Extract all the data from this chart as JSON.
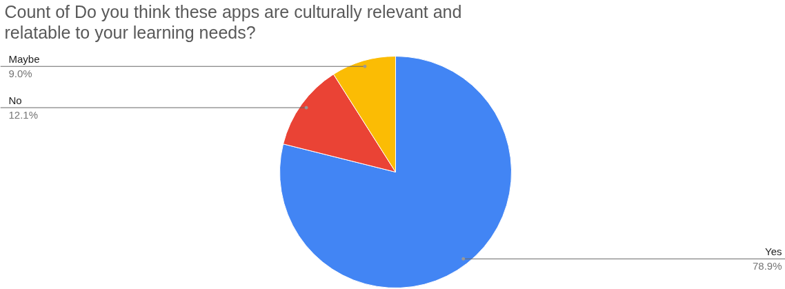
{
  "chart_data": {
    "type": "pie",
    "title": "Count of Do you think these apps are culturally relevant and relatable to your learning needs?",
    "categories": [
      "Yes",
      "No",
      "Maybe"
    ],
    "values": [
      78.9,
      12.1,
      9.0
    ],
    "value_labels": [
      "78.9%",
      "12.1%",
      "9.0%"
    ],
    "colors": [
      "#4285f4",
      "#ea4335",
      "#fbbc04"
    ]
  }
}
